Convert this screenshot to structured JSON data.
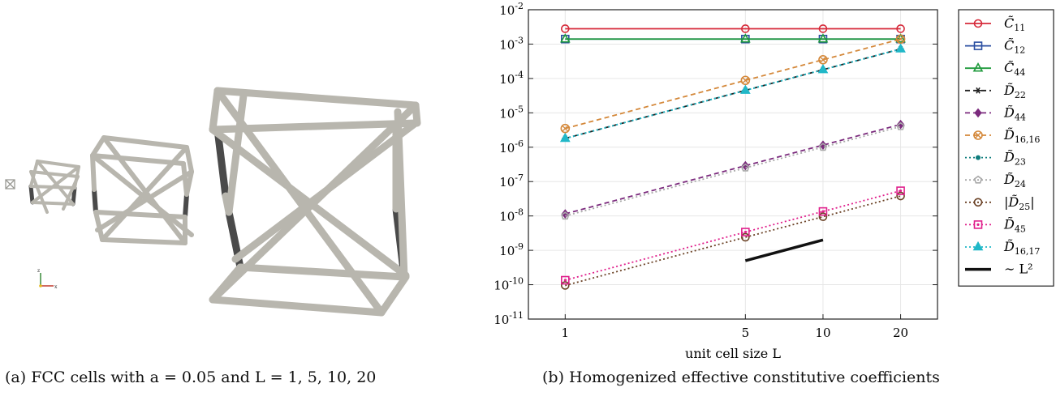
{
  "caption_a": "(a) FCC cells with a = 0.05 and L = 1, 5, 10, 20",
  "caption_b": "(b) Homogenized effective constitutive coefficients",
  "panel_a": {
    "axis_triad_labels": [
      "z",
      "x"
    ]
  },
  "chart_data": {
    "type": "line",
    "xlabel": "unit cell size L",
    "ylabel": "",
    "x": [
      1,
      5,
      10,
      20
    ],
    "x_tick_labels": [
      "1",
      "5",
      "10",
      "20"
    ],
    "xscale": "log",
    "yscale": "log",
    "ylim_exp": [
      -11,
      -2
    ],
    "y_tick_base": "10",
    "y_tick_exponents": [
      "-2",
      "-3",
      "-4",
      "-5",
      "-6",
      "-7",
      "-8",
      "-9",
      "-10",
      "-11"
    ],
    "grid": true,
    "legend_position": "right-outside",
    "series": [
      {
        "name": "C̃11",
        "values": [
          0.0028,
          0.0028,
          0.0028,
          0.0028
        ],
        "color": "#d62a3a",
        "marker": "circle",
        "dash": "solid"
      },
      {
        "name": "C̃12",
        "values": [
          0.0014,
          0.0014,
          0.0014,
          0.0014
        ],
        "color": "#2b4fa2",
        "marker": "square",
        "dash": "solid"
      },
      {
        "name": "C̃44",
        "values": [
          0.0014,
          0.0014,
          0.0014,
          0.0014
        ],
        "color": "#1f9a3c",
        "marker": "triangle",
        "dash": "solid"
      },
      {
        "name": "D̃22",
        "values": [
          1.8e-06,
          4.5e-05,
          0.00018,
          0.00072
        ],
        "color": "#222222",
        "marker": "star",
        "dash": "dashed"
      },
      {
        "name": "D̃44",
        "values": [
          1.15e-08,
          2.9e-07,
          1.15e-06,
          4.6e-06
        ],
        "color": "#7b2a7d",
        "marker": "diamond",
        "dash": "dashed"
      },
      {
        "name": "D̃16,16",
        "values": [
          3.5e-06,
          8.8e-05,
          0.00035,
          0.0014
        ],
        "color": "#d4883a",
        "marker": "circle-x",
        "dash": "dashed"
      },
      {
        "name": "D̃23",
        "values": [
          1.8e-06,
          4.5e-05,
          0.00018,
          0.00072
        ],
        "color": "#0f7d7d",
        "marker": "dot",
        "dash": "dotted"
      },
      {
        "name": "D̃24",
        "values": [
          1e-08,
          2.5e-07,
          1e-06,
          4e-06
        ],
        "color": "#a9a9a9",
        "marker": "pentagon",
        "dash": "dotted"
      },
      {
        "name": "|D̃25|",
        "values": [
          9.5e-11,
          2.4e-09,
          9.5e-09,
          3.8e-08
        ],
        "color": "#6b4226",
        "marker": "circle",
        "dash": "dotted"
      },
      {
        "name": "D̃45",
        "values": [
          1.35e-10,
          3.4e-09,
          1.35e-08,
          5.4e-08
        ],
        "color": "#e0208c",
        "marker": "square-dot",
        "dash": "dotted"
      },
      {
        "name": "D̃16,17",
        "values": [
          1.8e-06,
          4.5e-05,
          0.00018,
          0.00072
        ],
        "color": "#21b8c8",
        "marker": "triangle",
        "dash": "dotted"
      }
    ],
    "reference_line": {
      "name": "∼ L²",
      "x": [
        5,
        10
      ],
      "values": [
        5e-10,
        2e-09
      ],
      "color": "#111111"
    }
  }
}
